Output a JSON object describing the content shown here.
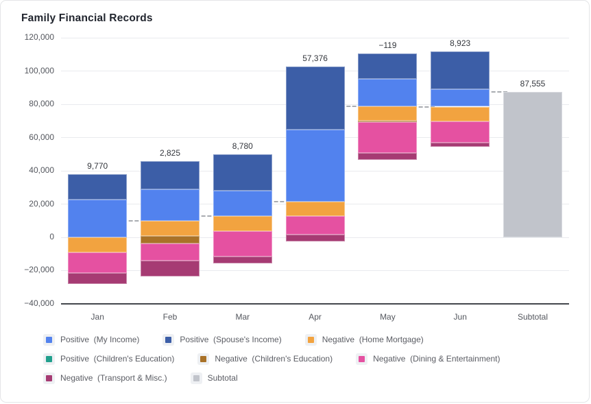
{
  "card": {
    "title": "Family Financial Records"
  },
  "colors": {
    "grid": "#e9eaee",
    "axis_line": "#43464c",
    "connector": "#a8abb0",
    "axis_text": "#53565d",
    "bar_label_text": "#33363c",
    "legend_text": "#5a5c63",
    "legend_swatch_bg": "#eef0f3",
    "card_border": "#e4e5e7"
  },
  "chart_data": {
    "type": "bar",
    "subtype": "stacked-waterfall",
    "title": "Family Financial Records",
    "categories": [
      "Jan",
      "Feb",
      "Mar",
      "Apr",
      "May",
      "Jun",
      "Subtotal"
    ],
    "y_axis": {
      "min": -40000,
      "max": 120000,
      "tick_step": 20000,
      "tick_labels": [
        "120,000",
        "100,000",
        "80,000",
        "60,000",
        "40,000",
        "20,000",
        "0",
        "−20,000",
        "−40,000"
      ]
    },
    "grid": true,
    "legend_position": "bottom",
    "connector_style": "dashed",
    "series": [
      {
        "name": "Positive (My Income)",
        "legend_label": "Positive  (My Income)",
        "role": "positive",
        "color": "#5282ee",
        "values": [
          22500,
          19000,
          15600,
          43400,
          16400,
          10700,
          0
        ]
      },
      {
        "name": "Positive (Spouse's Income)",
        "legend_label": "Positive  (Spouse's Income)",
        "role": "positive",
        "color": "#3c5ea7",
        "values": [
          15370,
          17000,
          21600,
          37876,
          15500,
          22500,
          0
        ]
      },
      {
        "name": "Positive (Children's Education)",
        "legend_label": "Positive  (Children's Education)",
        "role": "positive",
        "color": "#21a08d",
        "values": [
          0,
          0,
          0,
          0,
          0,
          0,
          0
        ]
      },
      {
        "name": "Negative (Home Mortgage)",
        "legend_label": "Negative  (Home Mortgage)",
        "role": "negative",
        "color": "#f2a340",
        "values": [
          9200,
          8900,
          8900,
          8600,
          8500,
          8800,
          0
        ]
      },
      {
        "name": "Negative (Children's Education)",
        "legend_label": "Negative  (Children's Education)",
        "role": "negative",
        "color": "#a97228",
        "values": [
          0,
          4500,
          0,
          0,
          800,
          0,
          0
        ]
      },
      {
        "name": "Negative (Dining & Entertainment)",
        "legend_label": "Negative  (Dining & Entertainment)",
        "role": "negative",
        "color": "#e551a1",
        "values": [
          12300,
          10300,
          15200,
          11100,
          18500,
          12700,
          0
        ]
      },
      {
        "name": "Negative (Transport & Misc.)",
        "legend_label": "Negative  (Transport & Misc.)",
        "role": "negative",
        "color": "#a63b73",
        "values": [
          6600,
          9475,
          4320,
          4200,
          4219,
          2777,
          0
        ]
      },
      {
        "name": "Subtotal",
        "legend_label": "Subtotal",
        "role": "subtotal",
        "color": "#c1c4cb",
        "values": [
          0,
          0,
          0,
          0,
          0,
          0,
          87555
        ]
      }
    ],
    "bar_labels": [
      "9,770",
      "2,825",
      "8,780",
      "57,376",
      "−119",
      "8,923",
      "87,555"
    ],
    "net_values": [
      9770,
      2825,
      8780,
      57376,
      -119,
      8923,
      87555
    ],
    "cumulative_after": [
      9770,
      12595,
      21375,
      78751,
      78632,
      87555,
      87555
    ],
    "legend_rows": [
      [
        0,
        1,
        3
      ],
      [
        2,
        4,
        5
      ],
      [
        6,
        7
      ]
    ]
  }
}
